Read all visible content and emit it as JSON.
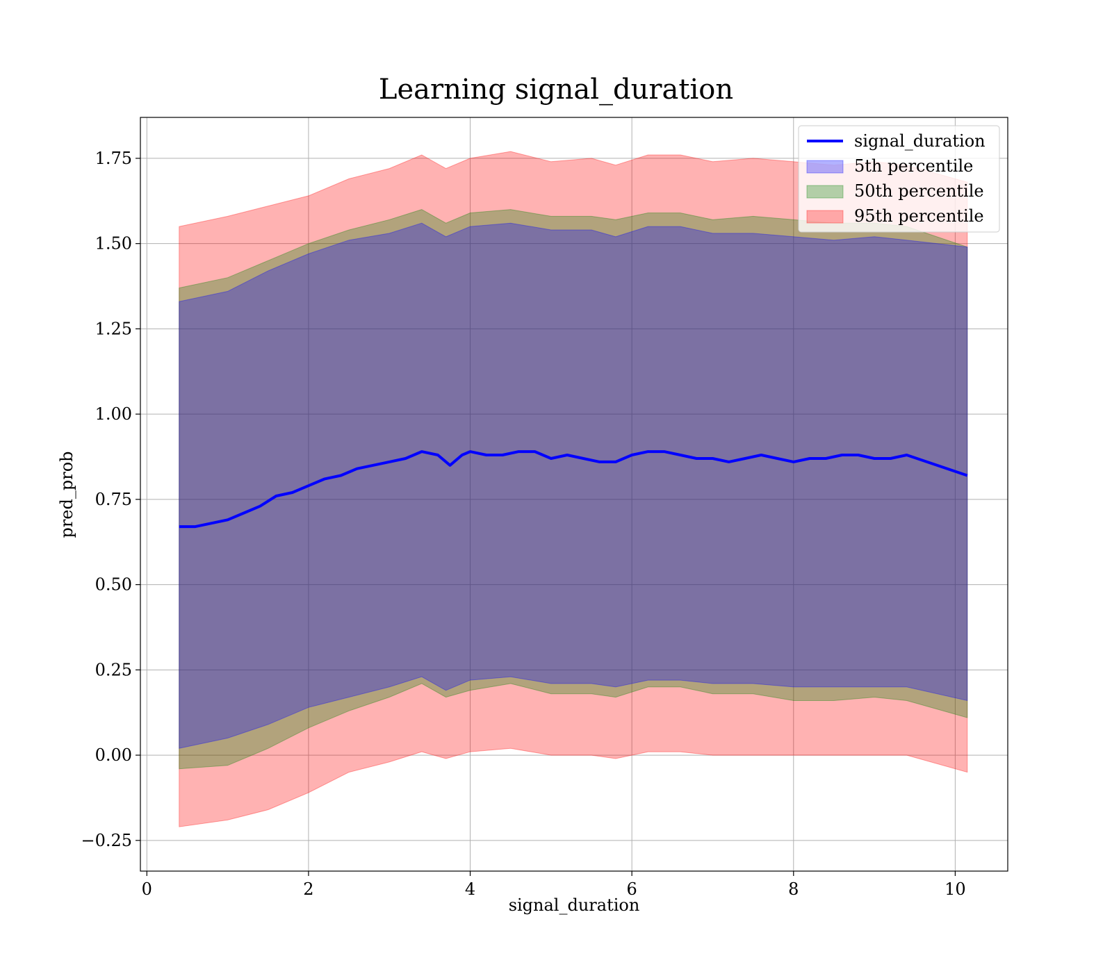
{
  "chart_data": {
    "type": "area",
    "title": "Learning signal_duration",
    "xlabel": "signal_duration",
    "ylabel": "pred_prob",
    "xlim": [
      -0.08,
      10.65
    ],
    "ylim": [
      -0.34,
      1.87
    ],
    "xticks": [
      0,
      2,
      4,
      6,
      8,
      10
    ],
    "xtick_labels": [
      "0",
      "2",
      "4",
      "6",
      "8",
      "10"
    ],
    "yticks": [
      -0.25,
      0,
      0.25,
      0.5,
      0.75,
      1.0,
      1.25,
      1.5,
      1.75
    ],
    "ytick_labels": [
      "−0.25",
      "0.00",
      "0.25",
      "0.50",
      "0.75",
      "1.00",
      "1.25",
      "1.50",
      "1.75"
    ],
    "grid": true,
    "legend_position": "top-right",
    "legend": [
      {
        "label": "signal_duration",
        "kind": "line",
        "color": "#0000ff"
      },
      {
        "label": "5th percentile",
        "kind": "band",
        "color": "#0000ff"
      },
      {
        "label": "50th percentile",
        "kind": "band",
        "color": "#008000"
      },
      {
        "label": "95th percentile",
        "kind": "band",
        "color": "#ff0000"
      }
    ],
    "line": {
      "name": "signal_duration",
      "color": "#0000ff",
      "x": [
        0.4,
        0.6,
        0.8,
        1.0,
        1.2,
        1.4,
        1.6,
        1.8,
        2.0,
        2.2,
        2.4,
        2.6,
        2.8,
        3.0,
        3.2,
        3.4,
        3.6,
        3.75,
        3.9,
        4.0,
        4.2,
        4.4,
        4.6,
        4.8,
        5.0,
        5.2,
        5.4,
        5.6,
        5.8,
        6.0,
        6.2,
        6.4,
        6.6,
        6.8,
        7.0,
        7.2,
        7.4,
        7.6,
        7.8,
        8.0,
        8.2,
        8.4,
        8.6,
        8.8,
        9.0,
        9.2,
        9.4,
        10.15
      ],
      "y": [
        0.67,
        0.67,
        0.68,
        0.69,
        0.71,
        0.73,
        0.76,
        0.77,
        0.79,
        0.81,
        0.82,
        0.84,
        0.85,
        0.86,
        0.87,
        0.89,
        0.88,
        0.85,
        0.88,
        0.89,
        0.88,
        0.88,
        0.89,
        0.89,
        0.87,
        0.88,
        0.87,
        0.86,
        0.86,
        0.88,
        0.89,
        0.89,
        0.88,
        0.87,
        0.87,
        0.86,
        0.87,
        0.88,
        0.87,
        0.86,
        0.87,
        0.87,
        0.88,
        0.88,
        0.87,
        0.87,
        0.88,
        0.82
      ]
    },
    "bands": [
      {
        "name": "95th percentile",
        "color": "#ff0000",
        "opacity": 0.3,
        "x": [
          0.4,
          1.0,
          1.5,
          2.0,
          2.5,
          3.0,
          3.4,
          3.7,
          4.0,
          4.5,
          5.0,
          5.5,
          5.8,
          6.2,
          6.6,
          7.0,
          7.5,
          8.0,
          8.5,
          9.0,
          9.4,
          10.15
        ],
        "upper": [
          1.55,
          1.58,
          1.61,
          1.64,
          1.69,
          1.72,
          1.76,
          1.72,
          1.75,
          1.77,
          1.74,
          1.75,
          1.73,
          1.76,
          1.76,
          1.74,
          1.75,
          1.74,
          1.73,
          1.74,
          1.73,
          1.68
        ],
        "lower": [
          -0.21,
          -0.19,
          -0.16,
          -0.11,
          -0.05,
          -0.02,
          0.01,
          -0.01,
          0.01,
          0.02,
          0.0,
          0.0,
          -0.01,
          0.01,
          0.01,
          0.0,
          0.0,
          0.0,
          0.0,
          0.0,
          0.0,
          -0.05
        ]
      },
      {
        "name": "50th percentile",
        "color": "#008000",
        "opacity": 0.3,
        "x": [
          0.4,
          1.0,
          1.5,
          2.0,
          2.5,
          3.0,
          3.4,
          3.7,
          4.0,
          4.5,
          5.0,
          5.5,
          5.8,
          6.2,
          6.6,
          7.0,
          7.5,
          8.0,
          8.5,
          9.0,
          9.4,
          10.15
        ],
        "upper": [
          1.37,
          1.4,
          1.45,
          1.5,
          1.54,
          1.57,
          1.6,
          1.56,
          1.59,
          1.6,
          1.58,
          1.58,
          1.57,
          1.59,
          1.59,
          1.57,
          1.58,
          1.57,
          1.56,
          1.56,
          1.55,
          1.49
        ],
        "lower": [
          -0.04,
          -0.03,
          0.02,
          0.08,
          0.13,
          0.17,
          0.21,
          0.17,
          0.19,
          0.21,
          0.18,
          0.18,
          0.17,
          0.2,
          0.2,
          0.18,
          0.18,
          0.16,
          0.16,
          0.17,
          0.16,
          0.11
        ]
      },
      {
        "name": "5th percentile",
        "color": "#0000ff",
        "opacity": 0.3,
        "x": [
          0.4,
          1.0,
          1.5,
          2.0,
          2.5,
          3.0,
          3.4,
          3.7,
          4.0,
          4.5,
          5.0,
          5.5,
          5.8,
          6.2,
          6.6,
          7.0,
          7.5,
          8.0,
          8.5,
          9.0,
          9.4,
          10.15
        ],
        "upper": [
          1.33,
          1.36,
          1.42,
          1.47,
          1.51,
          1.53,
          1.56,
          1.52,
          1.55,
          1.56,
          1.54,
          1.54,
          1.52,
          1.55,
          1.55,
          1.53,
          1.53,
          1.52,
          1.51,
          1.52,
          1.51,
          1.49
        ],
        "lower": [
          0.02,
          0.05,
          0.09,
          0.14,
          0.17,
          0.2,
          0.23,
          0.19,
          0.22,
          0.23,
          0.21,
          0.21,
          0.2,
          0.22,
          0.22,
          0.21,
          0.21,
          0.2,
          0.2,
          0.2,
          0.2,
          0.16
        ]
      }
    ]
  }
}
